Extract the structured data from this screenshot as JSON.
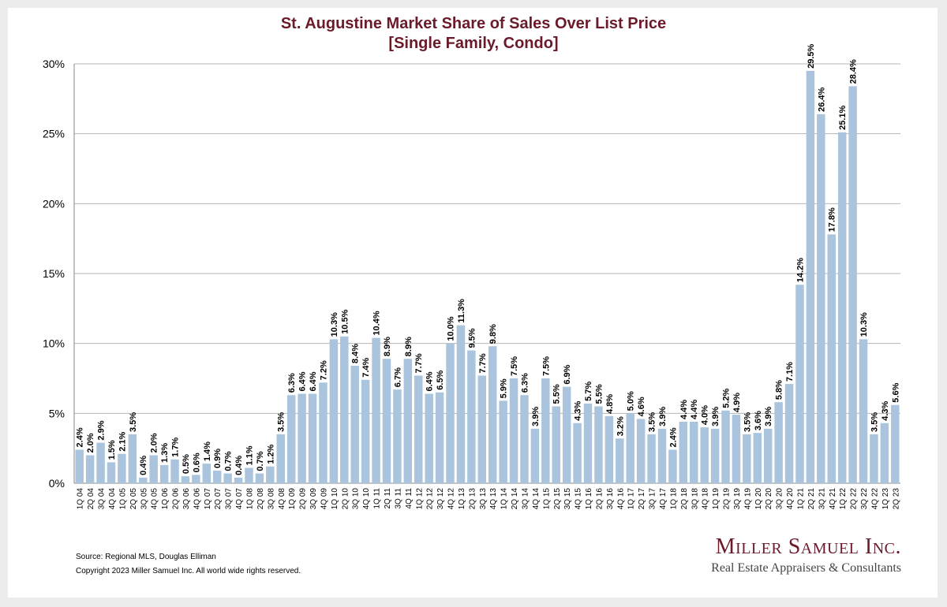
{
  "chart_data": {
    "type": "bar",
    "title": "St. Augustine Market Share of Sales Over List Price",
    "subtitle": "[Single Family, Condo]",
    "xlabel": "",
    "ylabel": "",
    "ylim": [
      0,
      30
    ],
    "yticks": [
      "0%",
      "5%",
      "10%",
      "15%",
      "20%",
      "25%",
      "30%"
    ],
    "grid": true,
    "bar_color": "#a9c4dc",
    "categories": [
      "1Q 04",
      "2Q 04",
      "3Q 04",
      "4Q 04",
      "1Q 05",
      "2Q 05",
      "3Q 05",
      "4Q 05",
      "1Q 06",
      "2Q 06",
      "3Q 06",
      "4Q 06",
      "1Q 07",
      "2Q 07",
      "3Q 07",
      "4Q 07",
      "1Q 08",
      "2Q 08",
      "3Q 08",
      "4Q 08",
      "1Q 09",
      "2Q 09",
      "3Q 09",
      "4Q 09",
      "1Q 10",
      "2Q 10",
      "3Q 10",
      "4Q 10",
      "1Q 11",
      "2Q 11",
      "3Q 11",
      "4Q 11",
      "1Q 12",
      "2Q 12",
      "3Q 12",
      "4Q 12",
      "1Q 13",
      "2Q 13",
      "3Q 13",
      "4Q 13",
      "1Q 14",
      "2Q 14",
      "3Q 14",
      "4Q 14",
      "1Q 15",
      "2Q 15",
      "3Q 15",
      "4Q 15",
      "1Q 16",
      "2Q 16",
      "3Q 16",
      "4Q 16",
      "1Q 17",
      "2Q 17",
      "3Q 17",
      "4Q 17",
      "1Q 18",
      "2Q 18",
      "3Q 18",
      "4Q 18",
      "1Q 19",
      "2Q 19",
      "3Q 19",
      "4Q 19",
      "1Q 20",
      "2Q 20",
      "3Q 20",
      "4Q 20",
      "1Q 21",
      "2Q 21",
      "3Q 21",
      "4Q 21",
      "1Q 22",
      "2Q 22",
      "3Q 22",
      "4Q 22",
      "1Q 23",
      "2Q 23"
    ],
    "values": [
      2.4,
      2.0,
      2.9,
      1.5,
      2.1,
      3.5,
      0.4,
      2.0,
      1.3,
      1.7,
      0.5,
      0.6,
      1.4,
      0.9,
      0.7,
      0.4,
      1.1,
      0.7,
      1.2,
      3.5,
      6.3,
      6.4,
      6.4,
      7.2,
      10.3,
      10.5,
      8.4,
      7.4,
      10.4,
      8.9,
      6.7,
      8.9,
      7.7,
      6.4,
      6.5,
      10.0,
      11.3,
      9.5,
      7.7,
      9.8,
      5.9,
      7.5,
      6.3,
      3.9,
      7.5,
      5.5,
      6.9,
      4.3,
      5.7,
      5.5,
      4.8,
      3.2,
      5.0,
      4.6,
      3.5,
      3.9,
      2.4,
      4.4,
      4.4,
      4.0,
      3.9,
      5.2,
      4.9,
      3.5,
      3.6,
      3.9,
      5.8,
      7.1,
      14.2,
      29.5,
      26.4,
      17.8,
      25.1,
      28.4,
      10.3,
      3.5,
      4.3,
      5.6
    ],
    "data_labels": [
      "2.4%",
      "2.0%",
      "2.9%",
      "1.5%",
      "2.1%",
      "3.5%",
      "0.4%",
      "2.0%",
      "1.3%",
      "1.7%",
      "0.5%",
      "0.6%",
      "1.4%",
      "0.9%",
      "0.7%",
      "0.4%",
      "1.1%",
      "0.7%",
      "1.2%",
      "3.5%",
      "6.3%",
      "6.4%",
      "6.4%",
      "7.2%",
      "10.3%",
      "10.5%",
      "8.4%",
      "7.4%",
      "10.4%",
      "8.9%",
      "6.7%",
      "8.9%",
      "7.7%",
      "6.4%",
      "6.5%",
      "10.0%",
      "11.3%",
      "9.5%",
      "7.7%",
      "9.8%",
      "5.9%",
      "7.5%",
      "6.3%",
      "3.9%",
      "7.5%",
      "5.5%",
      "6.9%",
      "4.3%",
      "5.7%",
      "5.5%",
      "4.8%",
      "3.2%",
      "5.0%",
      "4.6%",
      "3.5%",
      "3.9%",
      "2.4%",
      "4.4%",
      "4.4%",
      "4.0%",
      "3.9%",
      "5.2%",
      "4.9%",
      "3.5%",
      "3.6%",
      "3.9%",
      "5.8%",
      "7.1%",
      "14.2%",
      "29.5%",
      "26.4%",
      "17.8%",
      "25.1%",
      "28.4%",
      "10.3%",
      "3.5%",
      "4.3%",
      "5.6%"
    ]
  },
  "footer": {
    "source": "Source: Regional MLS, Douglas Elliman",
    "copyright": "Copyright 2023 Miller Samuel Inc.  All world wide rights reserved."
  },
  "brand": {
    "name": "Miller Samuel Inc.",
    "tagline": "Real Estate Appraisers & Consultants",
    "color": "#6b1a2a"
  }
}
